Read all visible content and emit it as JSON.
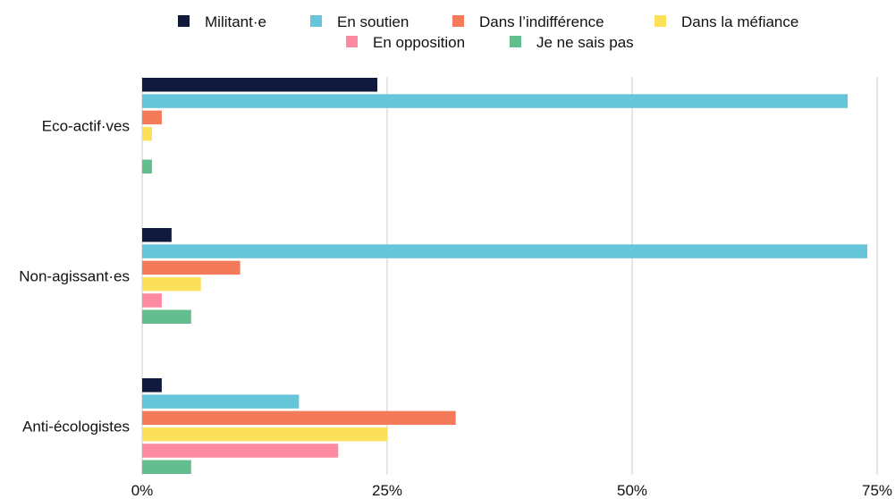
{
  "chart_data": {
    "type": "bar",
    "orientation": "horizontal",
    "categories": [
      "Eco-actif·ves",
      "Non-agissant·es",
      "Anti-écologistes"
    ],
    "series": [
      {
        "name": "Militant·e",
        "color": "#0f1a3c",
        "values": [
          24,
          3,
          2
        ]
      },
      {
        "name": "En soutien",
        "color": "#67c5d9",
        "values": [
          72,
          74,
          16
        ]
      },
      {
        "name": "Dans l’indifférence",
        "color": "#f47a5a",
        "values": [
          2,
          10,
          32
        ]
      },
      {
        "name": "Dans la méfiance",
        "color": "#fde05a",
        "values": [
          1,
          6,
          25
        ]
      },
      {
        "name": "En opposition",
        "color": "#fd8aa0",
        "values": [
          0,
          2,
          20
        ]
      },
      {
        "name": "Je ne sais pas",
        "color": "#62bd8f",
        "values": [
          1,
          5,
          5
        ]
      }
    ],
    "xlim": [
      0,
      75
    ],
    "x_ticks": [
      0,
      25,
      50,
      75
    ],
    "x_tick_labels": [
      "0%",
      "25%",
      "50%",
      "75%"
    ],
    "grid": true,
    "legend_position": "top"
  }
}
